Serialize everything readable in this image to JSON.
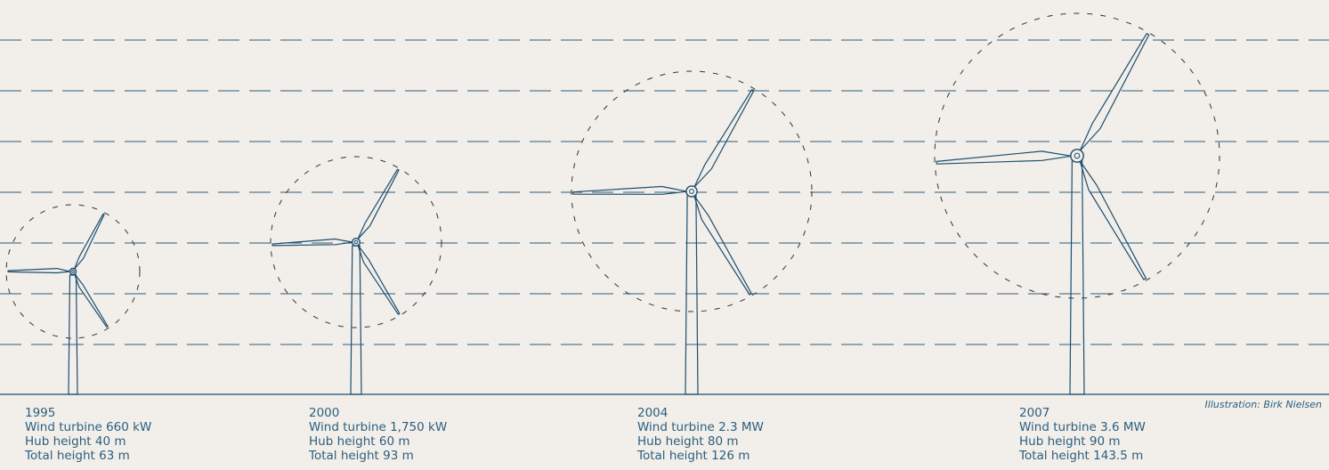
{
  "colors": {
    "background": "#f2eeea",
    "line": "#1c4f6e",
    "dash": "#2b5f7e",
    "text": "#2b5f7e"
  },
  "turbines": [
    {
      "year": "1995",
      "rating": "Wind turbine 660 kW",
      "hub": "Hub height 40 m",
      "total": "Total height 63 m"
    },
    {
      "year": "2000",
      "rating": "Wind turbine 1,750 kW",
      "hub": "Hub height 60 m",
      "total": "Total height 93 m"
    },
    {
      "year": "2004",
      "rating": "Wind turbine 2.3 MW",
      "hub": "Hub height 80 m",
      "total": "Total height 126 m"
    },
    {
      "year": "2007",
      "rating": "Wind turbine 3.6 MW",
      "hub": "Hub height 90 m",
      "total": "Total height 143.5 m"
    }
  ],
  "credit": "Illustration: Birk Nielsen"
}
